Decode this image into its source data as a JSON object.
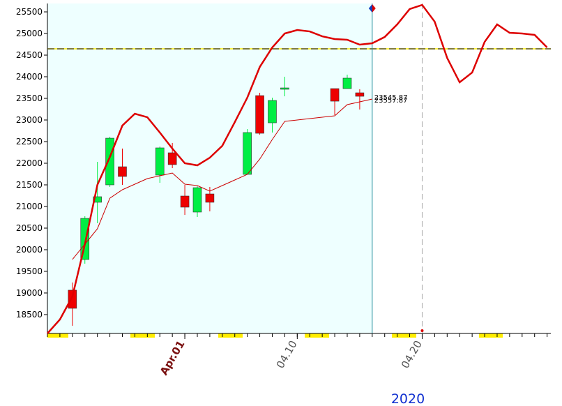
{
  "chart_data": {
    "type": "candlestick",
    "xlim": [
      0,
      40.3
    ],
    "ylim": [
      18064,
      25694
    ],
    "yticks": [
      18500,
      19000,
      19500,
      20000,
      20500,
      21000,
      21500,
      22000,
      22500,
      23000,
      23500,
      24000,
      24500,
      25000,
      25500
    ],
    "xticks": [
      {
        "value": 11,
        "label": "Apr.01"
      },
      {
        "value": 20,
        "label": "04.10"
      },
      {
        "value": 30,
        "label": "04.20"
      }
    ],
    "year_label": "2020",
    "up_color": "#00ee44",
    "down_color": "#ee0000",
    "x": [
      2,
      3,
      4,
      5,
      6,
      9,
      10,
      11,
      12,
      13,
      16,
      17,
      18,
      19,
      23,
      24,
      25
    ],
    "open": [
      19065,
      19774,
      21097,
      21500,
      21919,
      21726,
      22242,
      21242,
      20871,
      21290,
      21742,
      23564,
      22935,
      23710,
      23726,
      23726,
      23629
    ],
    "high": [
      19242,
      20774,
      22032,
      22613,
      22339,
      22387,
      22468,
      21500,
      21468,
      21452,
      22790,
      23629,
      23516,
      24000,
      23726,
      24048,
      23710
    ],
    "low": [
      18242,
      19677,
      20613,
      21452,
      21500,
      21548,
      21887,
      20806,
      20758,
      20887,
      21742,
      22661,
      22710,
      23548,
      23113,
      23726,
      23242
    ],
    "close": [
      18645,
      20725,
      21226,
      22580,
      21694,
      22355,
      21968,
      20984,
      21435,
      21097,
      22710,
      22693,
      23452,
      23742,
      23435,
      23968,
      23548
    ],
    "lines": [
      {
        "color": "#dd0000",
        "width": 2.5,
        "x": [
          0,
          1,
          2,
          3,
          4,
          5,
          6,
          7,
          8,
          9,
          10,
          11,
          12,
          13,
          14,
          15,
          16,
          17,
          18,
          19,
          20,
          21,
          22,
          23,
          24,
          25,
          26,
          27,
          28,
          29,
          30,
          31,
          32,
          33,
          34,
          35,
          36,
          37,
          38,
          39,
          40
        ],
        "values": [
          18064,
          18387,
          18919,
          20129,
          21500,
          22145,
          22871,
          23145,
          23064,
          22710,
          22339,
          22000,
          21951,
          22129,
          22403,
          22951,
          23516,
          24226,
          24677,
          25000,
          25081,
          25048,
          24935,
          24871,
          24855,
          24742,
          24774,
          24919,
          25210,
          25565,
          25661,
          25274,
          24435,
          23871,
          24097,
          24806,
          25210,
          25016,
          25000,
          24968,
          24677
        ]
      },
      {
        "color": "#cc0000",
        "width": 1,
        "x": [
          2,
          3,
          4,
          5,
          6,
          7,
          8,
          9,
          10,
          11,
          12,
          13,
          14,
          15,
          16,
          17,
          18,
          19,
          20,
          21,
          22,
          23,
          24,
          25,
          26
        ],
        "values": [
          19774,
          20129,
          20484,
          21193,
          21387,
          21516,
          21645,
          21710,
          21774,
          21516,
          21484,
          21355,
          21484,
          21613,
          21742,
          22097,
          22548,
          22968,
          23000,
          23032,
          23064,
          23097,
          23355,
          23419,
          23484
        ]
      }
    ],
    "hline": 24645,
    "cursor_x": 26,
    "dashed_x": 30,
    "annotations": [
      "23545.87",
      "23557.87"
    ]
  }
}
